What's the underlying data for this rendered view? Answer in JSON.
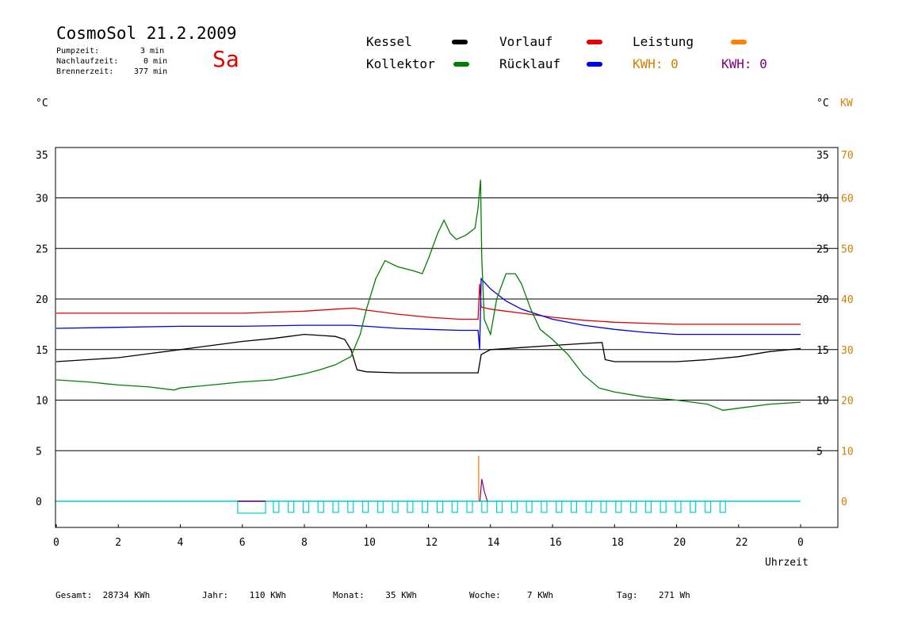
{
  "header": {
    "title": "CosmoSol 21.2.2009",
    "day": "Sa",
    "stats": [
      {
        "label": "Pumpzeit:",
        "value": "3 min"
      },
      {
        "label": "Nachlaufzeit:",
        "value": "0 min"
      },
      {
        "label": "Brennerzeit:",
        "value": "377 min"
      }
    ]
  },
  "legend": {
    "items": [
      {
        "label": "Kessel",
        "color": "#000000"
      },
      {
        "label": "Kollektor",
        "color": "#008000"
      },
      {
        "label": "Vorlauf",
        "color": "#e00000"
      },
      {
        "label": "Rücklauf",
        "color": "#0000e0"
      },
      {
        "label": "Leistung",
        "color": "#ff8000"
      }
    ],
    "kwh_orange": {
      "label": "KWH:",
      "value": "0",
      "color": "#d08000"
    },
    "kwh_purple": {
      "label": "KWH:",
      "value": "0",
      "color": "#800080"
    }
  },
  "axes": {
    "left_unit": "°C",
    "right_unit": "°C",
    "right_unit2": "KW",
    "xlabel": "Uhrzeit"
  },
  "footer": [
    {
      "label": "Gesamt:",
      "value": "28734 KWh"
    },
    {
      "label": "Jahr:",
      "value": "110 KWh"
    },
    {
      "label": "Monat:",
      "value": "35 KWh"
    },
    {
      "label": "Woche:",
      "value": "7 KWh"
    },
    {
      "label": "Tag:",
      "value": "271 Wh"
    }
  ],
  "chart_data": {
    "type": "line",
    "title": "CosmoSol 21.2.2009",
    "xlabel": "Uhrzeit",
    "ylabel": "°C",
    "y2label": "KW",
    "xlim": [
      0,
      24
    ],
    "ylim": [
      -2,
      35
    ],
    "x_ticks": [
      "0",
      "2",
      "4",
      "6",
      "8",
      "10",
      "12",
      "14",
      "16",
      "18",
      "20",
      "22",
      "0"
    ],
    "y_ticks": [
      0,
      5,
      10,
      15,
      20,
      25,
      30,
      35
    ],
    "y2_ticks": [
      0,
      10,
      20,
      30,
      40,
      50,
      60,
      70
    ],
    "grid": "horizontal",
    "series": [
      {
        "name": "Vorlauf",
        "color": "#e00000",
        "points": [
          [
            0,
            18.6
          ],
          [
            2,
            18.6
          ],
          [
            4,
            18.6
          ],
          [
            6,
            18.6
          ],
          [
            8,
            18.8
          ],
          [
            9,
            19.0
          ],
          [
            9.6,
            19.1
          ],
          [
            10,
            18.9
          ],
          [
            11,
            18.5
          ],
          [
            12,
            18.2
          ],
          [
            13,
            18.0
          ],
          [
            13.6,
            18.0
          ],
          [
            13.65,
            21.5
          ],
          [
            13.7,
            19.2
          ],
          [
            14,
            19.0
          ],
          [
            15,
            18.6
          ],
          [
            16,
            18.2
          ],
          [
            17,
            17.9
          ],
          [
            18,
            17.7
          ],
          [
            19,
            17.6
          ],
          [
            20,
            17.5
          ],
          [
            22,
            17.5
          ],
          [
            24,
            17.5
          ]
        ]
      },
      {
        "name": "Rücklauf",
        "color": "#0000e0",
        "points": [
          [
            0,
            17.1
          ],
          [
            2,
            17.2
          ],
          [
            4,
            17.3
          ],
          [
            6,
            17.3
          ],
          [
            8,
            17.4
          ],
          [
            9.5,
            17.4
          ],
          [
            10,
            17.3
          ],
          [
            11,
            17.1
          ],
          [
            12,
            17.0
          ],
          [
            13,
            16.9
          ],
          [
            13.6,
            16.9
          ],
          [
            13.65,
            15.0
          ],
          [
            13.7,
            22.0
          ],
          [
            14,
            21.0
          ],
          [
            14.5,
            19.8
          ],
          [
            15,
            19.0
          ],
          [
            16,
            18.0
          ],
          [
            17,
            17.4
          ],
          [
            18,
            17.0
          ],
          [
            19,
            16.7
          ],
          [
            20,
            16.5
          ],
          [
            22,
            16.5
          ],
          [
            24,
            16.5
          ]
        ]
      },
      {
        "name": "Kessel",
        "color": "#000000",
        "points": [
          [
            0,
            13.8
          ],
          [
            1,
            14.0
          ],
          [
            2,
            14.2
          ],
          [
            3,
            14.6
          ],
          [
            4,
            15.0
          ],
          [
            5,
            15.4
          ],
          [
            6,
            15.8
          ],
          [
            7,
            16.1
          ],
          [
            7.5,
            16.3
          ],
          [
            8,
            16.5
          ],
          [
            8.5,
            16.4
          ],
          [
            9,
            16.3
          ],
          [
            9.3,
            16.0
          ],
          [
            9.5,
            15.0
          ],
          [
            9.7,
            13.0
          ],
          [
            10,
            12.8
          ],
          [
            11,
            12.7
          ],
          [
            12,
            12.7
          ],
          [
            13,
            12.7
          ],
          [
            13.6,
            12.7
          ],
          [
            13.7,
            14.5
          ],
          [
            14,
            15.0
          ],
          [
            15,
            15.2
          ],
          [
            16,
            15.4
          ],
          [
            17,
            15.6
          ],
          [
            17.6,
            15.7
          ],
          [
            17.7,
            14.0
          ],
          [
            18,
            13.8
          ],
          [
            19,
            13.8
          ],
          [
            20,
            13.8
          ],
          [
            21,
            14.0
          ],
          [
            22,
            14.3
          ],
          [
            23,
            14.8
          ],
          [
            24,
            15.1
          ]
        ]
      },
      {
        "name": "Kollektor",
        "color": "#008000",
        "points": [
          [
            0,
            12.0
          ],
          [
            1,
            11.8
          ],
          [
            2,
            11.5
          ],
          [
            3,
            11.3
          ],
          [
            3.8,
            11.0
          ],
          [
            4,
            11.2
          ],
          [
            5,
            11.5
          ],
          [
            6,
            11.8
          ],
          [
            7,
            12.0
          ],
          [
            8,
            12.6
          ],
          [
            8.5,
            13.0
          ],
          [
            9,
            13.5
          ],
          [
            9.5,
            14.3
          ],
          [
            9.8,
            16.5
          ],
          [
            10,
            19.0
          ],
          [
            10.3,
            22.0
          ],
          [
            10.6,
            23.8
          ],
          [
            11,
            23.2
          ],
          [
            11.5,
            22.8
          ],
          [
            11.8,
            22.5
          ],
          [
            12,
            24.0
          ],
          [
            12.3,
            26.5
          ],
          [
            12.5,
            27.8
          ],
          [
            12.7,
            26.5
          ],
          [
            12.9,
            25.9
          ],
          [
            13.2,
            26.3
          ],
          [
            13.5,
            27.0
          ],
          [
            13.6,
            29.0
          ],
          [
            13.68,
            31.8
          ],
          [
            13.72,
            24.0
          ],
          [
            13.8,
            18.0
          ],
          [
            14,
            16.5
          ],
          [
            14.2,
            20.0
          ],
          [
            14.5,
            22.5
          ],
          [
            14.8,
            22.5
          ],
          [
            15,
            21.5
          ],
          [
            15.3,
            19.0
          ],
          [
            15.6,
            17.0
          ],
          [
            16,
            16.0
          ],
          [
            16.5,
            14.5
          ],
          [
            17,
            12.5
          ],
          [
            17.5,
            11.2
          ],
          [
            18,
            10.8
          ],
          [
            19,
            10.3
          ],
          [
            20,
            10.0
          ],
          [
            21,
            9.6
          ],
          [
            21.5,
            9.0
          ],
          [
            22,
            9.2
          ],
          [
            23,
            9.6
          ],
          [
            24,
            9.8
          ]
        ]
      }
    ]
  }
}
